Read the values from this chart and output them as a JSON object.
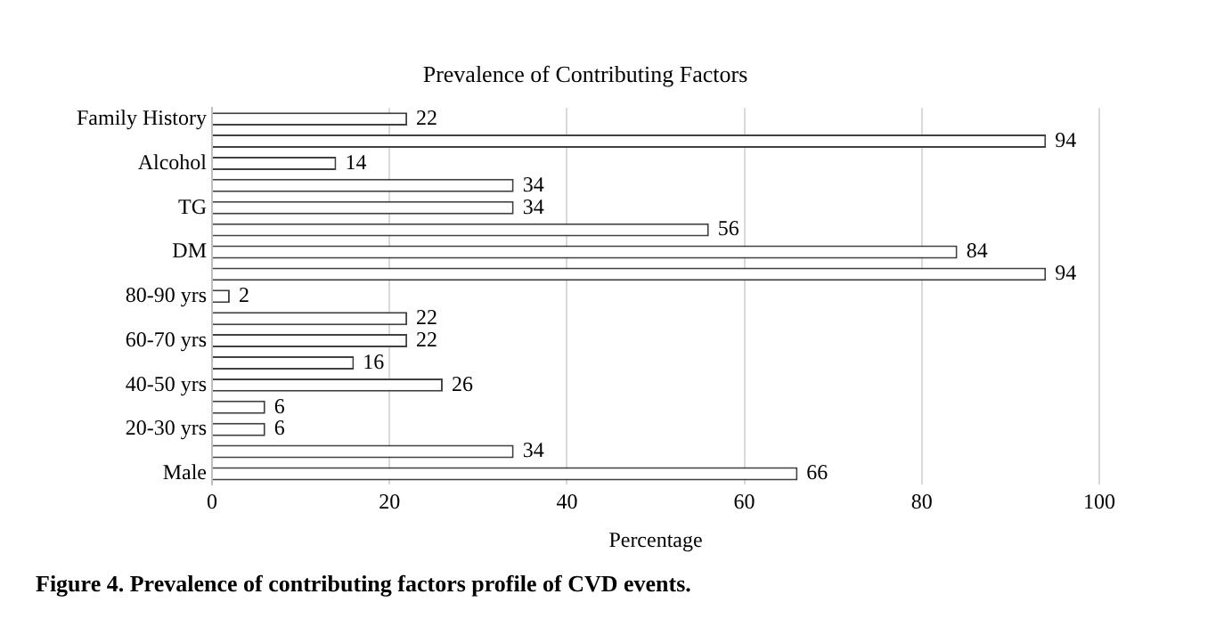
{
  "chart_data": {
    "type": "bar",
    "orientation": "horizontal",
    "title": "Prevalence of Contributing Factors",
    "xlabel": "Percentage",
    "categories": [
      "Family History",
      null,
      "Alcohol",
      null,
      "TG",
      null,
      "DM",
      null,
      "80-90 yrs",
      null,
      "60-70 yrs",
      null,
      "40-50 yrs",
      null,
      "20-30 yrs",
      null,
      "Male"
    ],
    "values": [
      22,
      94,
      14,
      34,
      34,
      56,
      84,
      94,
      2,
      22,
      22,
      16,
      26,
      6,
      6,
      34,
      66
    ],
    "color": "#ffffff",
    "xlim": [
      0,
      100
    ],
    "xticks": [
      0,
      20,
      40,
      60,
      80,
      100
    ],
    "grid": "x",
    "data_labels": true,
    "legend": false,
    "annotations": [
      "Figure 4. Prevalence of contributing factors profile of CVD events."
    ]
  }
}
